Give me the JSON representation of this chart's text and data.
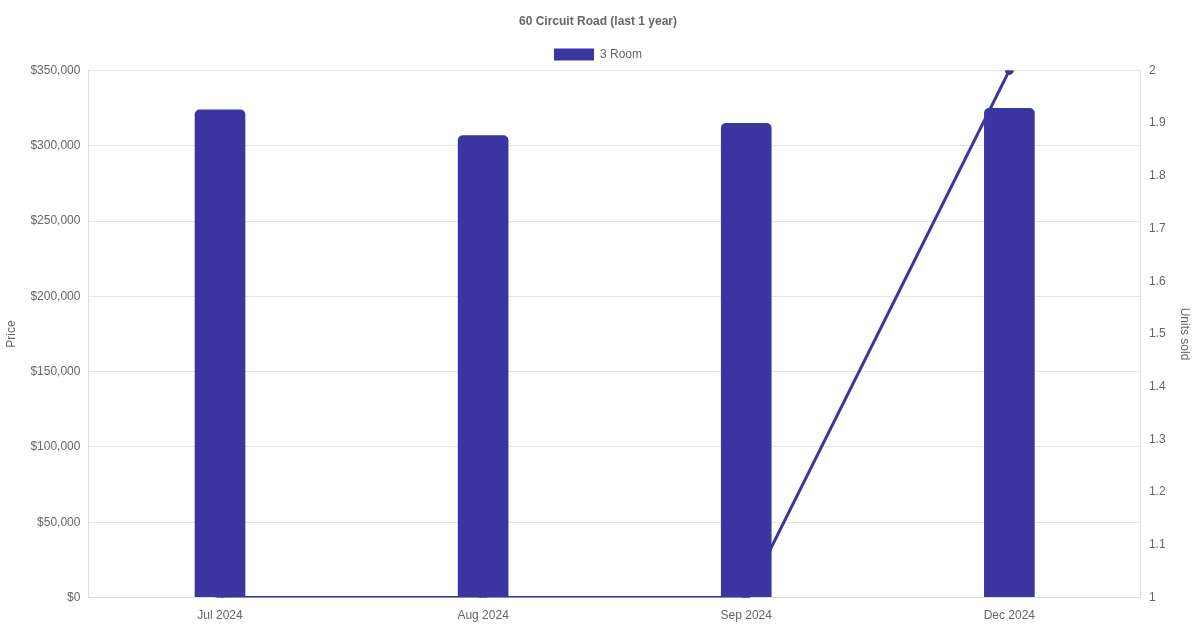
{
  "chart_data": {
    "type": "bar",
    "title": "60 Circuit Road (last 1 year)",
    "ylabel": "Price",
    "y2label": "Units sold",
    "categories": [
      "Jul 2024",
      "Aug 2024",
      "Sep 2024",
      "Dec 2024"
    ],
    "series": [
      {
        "name": "3 Room",
        "color": "#3a35a0",
        "values": [
          324000,
          307000,
          315000,
          325000
        ]
      },
      {
        "type": "line",
        "axis": "y2",
        "color": "#3a35a0",
        "marker": "circle",
        "line_style": "solid",
        "values": [
          1,
          1,
          1,
          2
        ]
      }
    ],
    "ylim": [
      0,
      350000
    ],
    "yticks": [
      {
        "value": 0,
        "label": "$0"
      },
      {
        "value": 50000,
        "label": "$50,000"
      },
      {
        "value": 100000,
        "label": "$100,000"
      },
      {
        "value": 150000,
        "label": "$150,000"
      },
      {
        "value": 200000,
        "label": "$200,000"
      },
      {
        "value": 250000,
        "label": "$250,000"
      },
      {
        "value": 300000,
        "label": "$300,000"
      },
      {
        "value": 350000,
        "label": "$350,000"
      }
    ],
    "y2lim": [
      1,
      2
    ],
    "y2ticks": [
      1,
      1.1,
      1.2,
      1.3,
      1.4,
      1.5,
      1.6,
      1.7,
      1.8,
      1.9,
      2
    ],
    "grid": "y",
    "legend": "top"
  }
}
